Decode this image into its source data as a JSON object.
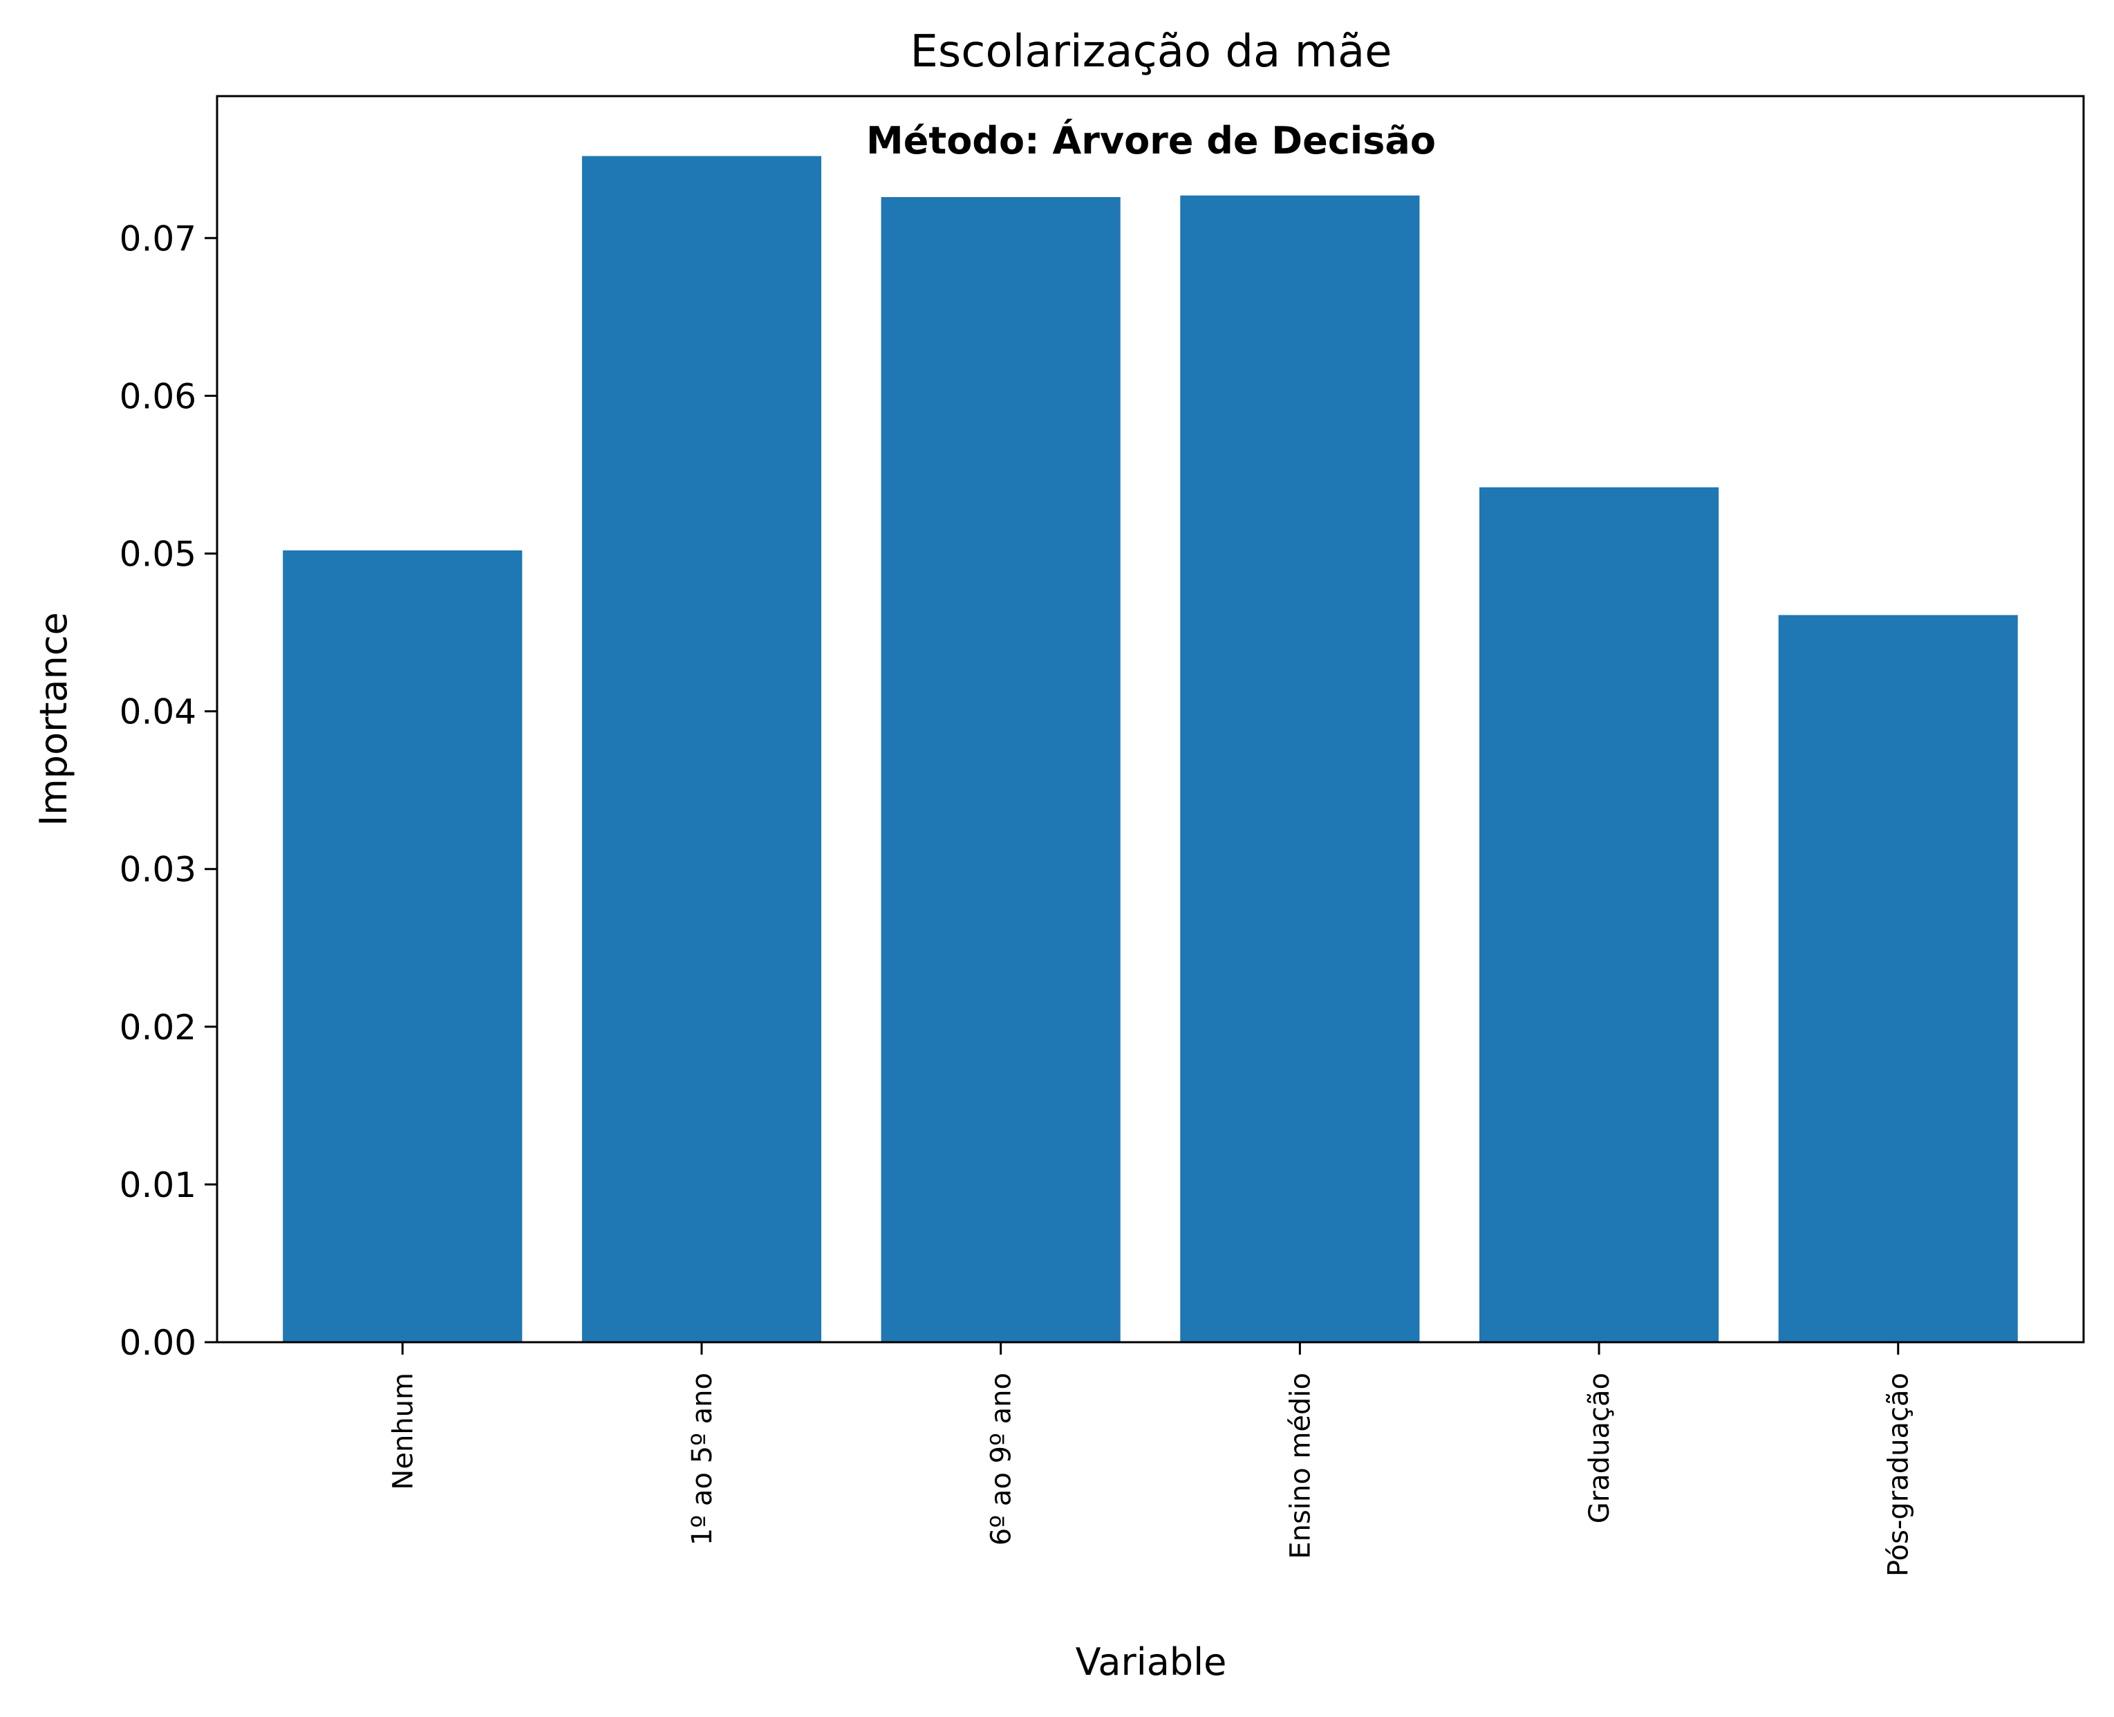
{
  "chart_data": {
    "type": "bar",
    "title": "Escolarização da mãe",
    "annotation": "Método: Árvore de Decisão",
    "xlabel": "Variable",
    "ylabel": "Importance",
    "categories": [
      "Nenhum",
      "1º ao 5º ano",
      "6º ao 9º ano",
      "Ensino médio",
      "Graduação",
      "Pós-graduação"
    ],
    "values": [
      0.0502,
      0.0752,
      0.0726,
      0.0727,
      0.0542,
      0.0461
    ],
    "ylim": [
      0,
      0.079
    ],
    "yticks": [
      0.0,
      0.01,
      0.02,
      0.03,
      0.04,
      0.05,
      0.06,
      0.07
    ],
    "ytick_labels": [
      "0.00",
      "0.01",
      "0.02",
      "0.03",
      "0.04",
      "0.05",
      "0.06",
      "0.07"
    ],
    "bar_color": "#1f77b4",
    "grid": false,
    "legend": false
  }
}
